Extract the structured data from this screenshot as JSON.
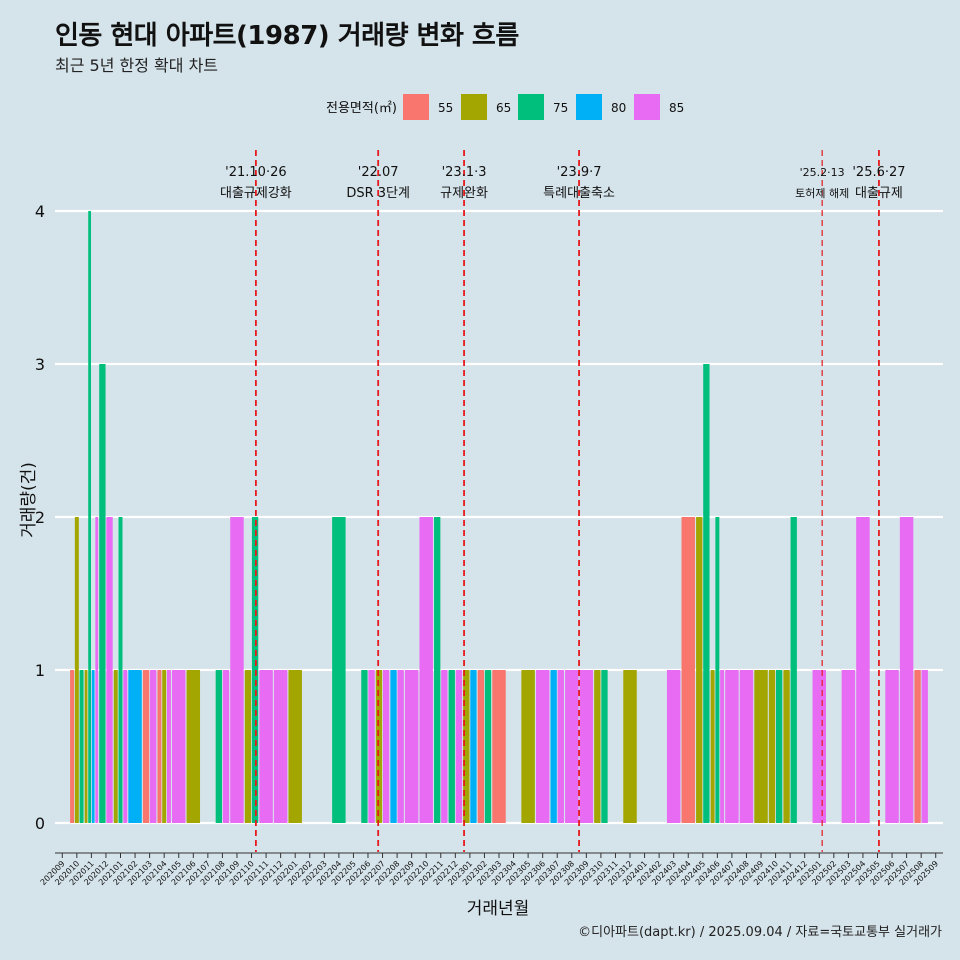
{
  "title": "인동 현대 아파트(1987) 거래량 변화 흐름",
  "subtitle": "최근 5년 한정 확대 차트",
  "caption": "©디아파트(dapt.kr) / 2025.09.04 / 자료=국토교통부 실거래가",
  "colors": {
    "background": "#d5e3ea",
    "grid": "#ffffff",
    "event_line": "#e41a1c"
  },
  "chart_data": {
    "type": "bar",
    "xlabel": "거래년월",
    "ylabel": "거래량(건)",
    "ylim": [
      0,
      4
    ],
    "yticks": [
      0,
      1,
      2,
      3,
      4
    ],
    "grid": true,
    "legend": {
      "title": "전용면적(㎡)",
      "placement": "top",
      "items": [
        {
          "name": "55",
          "color": "#f8766d"
        },
        {
          "name": "65",
          "color": "#a3a500"
        },
        {
          "name": "75",
          "color": "#00bf7d"
        },
        {
          "name": "80",
          "color": "#00b0f6"
        },
        {
          "name": "85",
          "color": "#e76bf3"
        }
      ]
    },
    "months": [
      "202009",
      "202010",
      "202011",
      "202012",
      "202101",
      "202102",
      "202103",
      "202104",
      "202105",
      "202106",
      "202107",
      "202108",
      "202109",
      "202110",
      "202111",
      "202112",
      "202201",
      "202202",
      "202203",
      "202204",
      "202205",
      "202206",
      "202207",
      "202208",
      "202209",
      "202210",
      "202211",
      "202212",
      "202301",
      "202302",
      "202303",
      "202304",
      "202305",
      "202306",
      "202307",
      "202308",
      "202309",
      "202310",
      "202311",
      "202312",
      "202401",
      "202402",
      "202403",
      "202404",
      "202405",
      "202406",
      "202407",
      "202408",
      "202409",
      "202410",
      "202411",
      "202412",
      "202501",
      "202502",
      "202503",
      "202504",
      "202505",
      "202506",
      "202507",
      "202508",
      "202509"
    ],
    "bars": [
      {
        "month": "202010",
        "values": {
          "55": 1,
          "65": 2,
          "75": 1
        }
      },
      {
        "month": "202011",
        "values": {
          "65": 1,
          "75": 4,
          "80": 1,
          "85": 2
        }
      },
      {
        "month": "202012",
        "values": {
          "75": 3,
          "85": 2
        }
      },
      {
        "month": "202101",
        "values": {
          "65": 1,
          "75": 2,
          "85": 1
        }
      },
      {
        "month": "202102",
        "values": {
          "80": 1
        }
      },
      {
        "month": "202103",
        "values": {
          "55": 1,
          "85": 1
        }
      },
      {
        "month": "202104",
        "values": {
          "55": 1,
          "65": 1,
          "85": 1
        }
      },
      {
        "month": "202105",
        "values": {
          "85": 1
        }
      },
      {
        "month": "202106",
        "values": {
          "65": 1
        }
      },
      {
        "month": "202108",
        "values": {
          "75": 1,
          "85": 1
        }
      },
      {
        "month": "202109",
        "values": {
          "85": 2
        }
      },
      {
        "month": "202110",
        "values": {
          "65": 1,
          "75": 2
        }
      },
      {
        "month": "202111",
        "values": {
          "85": 1
        }
      },
      {
        "month": "202112",
        "values": {
          "85": 1
        }
      },
      {
        "month": "202201",
        "values": {
          "65": 1
        }
      },
      {
        "month": "202204",
        "values": {
          "75": 2
        }
      },
      {
        "month": "202206",
        "values": {
          "75": 1,
          "85": 1
        }
      },
      {
        "month": "202207",
        "values": {
          "65": 1,
          "85": 1
        }
      },
      {
        "month": "202208",
        "values": {
          "80": 1,
          "85": 1
        }
      },
      {
        "month": "202209",
        "values": {
          "85": 1
        }
      },
      {
        "month": "202210",
        "values": {
          "85": 2
        }
      },
      {
        "month": "202211",
        "values": {
          "75": 2,
          "85": 1
        }
      },
      {
        "month": "202212",
        "values": {
          "75": 1,
          "85": 1
        }
      },
      {
        "month": "202301",
        "values": {
          "65": 1,
          "80": 1
        }
      },
      {
        "month": "202302",
        "values": {
          "55": 1,
          "75": 1
        }
      },
      {
        "month": "202303",
        "values": {
          "55": 1
        }
      },
      {
        "month": "202305",
        "values": {
          "65": 1
        }
      },
      {
        "month": "202306",
        "values": {
          "85": 1
        }
      },
      {
        "month": "202307",
        "values": {
          "80": 1,
          "85": 1
        }
      },
      {
        "month": "202308",
        "values": {
          "85": 1
        }
      },
      {
        "month": "202309",
        "values": {
          "85": 1
        }
      },
      {
        "month": "202310",
        "values": {
          "65": 1,
          "75": 1
        }
      },
      {
        "month": "202312",
        "values": {
          "65": 1
        }
      },
      {
        "month": "202403",
        "values": {
          "85": 1
        }
      },
      {
        "month": "202404",
        "values": {
          "55": 2
        }
      },
      {
        "month": "202405",
        "values": {
          "65": 2,
          "75": 3
        }
      },
      {
        "month": "202406",
        "values": {
          "65": 1,
          "75": 2,
          "85": 1
        }
      },
      {
        "month": "202407",
        "values": {
          "85": 1
        }
      },
      {
        "month": "202408",
        "values": {
          "85": 1
        }
      },
      {
        "month": "202409",
        "values": {
          "65": 1
        }
      },
      {
        "month": "202410",
        "values": {
          "65": 1,
          "75": 1
        }
      },
      {
        "month": "202411",
        "values": {
          "65": 1,
          "75": 2
        }
      },
      {
        "month": "202501",
        "values": {
          "85": 1
        }
      },
      {
        "month": "202503",
        "values": {
          "85": 1
        }
      },
      {
        "month": "202504",
        "values": {
          "85": 2
        }
      },
      {
        "month": "202506",
        "values": {
          "85": 1
        }
      },
      {
        "month": "202507",
        "values": {
          "85": 2
        }
      },
      {
        "month": "202508",
        "values": {
          "55": 1,
          "85": 1
        }
      }
    ],
    "events": [
      {
        "month_pos": 13.8,
        "date": "'21.10·26",
        "label": "대출규제강화",
        "small": false
      },
      {
        "month_pos": 22.2,
        "date": "'22.07",
        "label": "DSR 3단계",
        "small": false
      },
      {
        "month_pos": 28.1,
        "date": "'23.1·3",
        "label": "규제완화",
        "small": false
      },
      {
        "month_pos": 36.0,
        "date": "'23.9·7",
        "label": "특례대출축소",
        "small": false
      },
      {
        "month_pos": 52.7,
        "date": "'25.2·13",
        "label": "토허제 해제",
        "small": true
      },
      {
        "month_pos": 56.6,
        "date": "'25.6·27",
        "label": "대출규제",
        "small": false
      }
    ]
  }
}
